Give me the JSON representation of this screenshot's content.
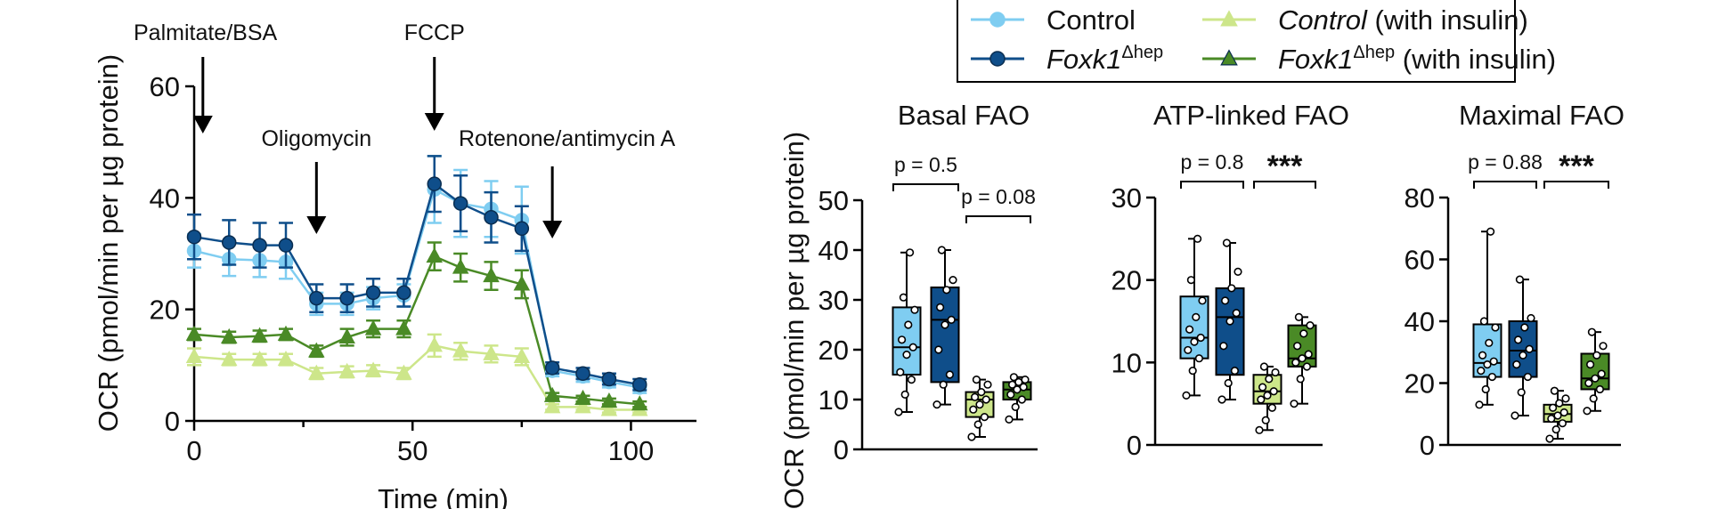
{
  "colors": {
    "control": "#7fcdf1",
    "foxk1": "#0f4e8a",
    "control_ins": "#cde68a",
    "foxk1_ins": "#4a8a26",
    "axis": "#111111"
  },
  "legend": {
    "items": [
      {
        "key": "control",
        "label": "Control",
        "marker": "circle",
        "italic": ""
      },
      {
        "key": "control_ins",
        "label": " (with insulin)",
        "marker": "triangle",
        "italic": "Control"
      },
      {
        "key": "foxk1",
        "label": "",
        "marker": "circle",
        "italic": "Foxk1",
        "sup": "Δhep"
      },
      {
        "key": "foxk1_ins",
        "label": " (with insulin)",
        "marker": "triangle",
        "italic": "Foxk1",
        "sup": "Δhep"
      }
    ]
  },
  "chart_data": [
    {
      "type": "line",
      "xlabel": "Time (min)",
      "ylabel": "OCR (pmol/min per µg protein)",
      "xlim": [
        0,
        115
      ],
      "ylim": [
        0,
        60
      ],
      "xticks": [
        0,
        50,
        100
      ],
      "yticks": [
        0,
        20,
        40,
        60
      ],
      "grid": false,
      "injections": [
        {
          "label": "Palmitate/BSA",
          "x": 2
        },
        {
          "label": "Oligomycin",
          "x": 28
        },
        {
          "label": "FCCP",
          "x": 55
        },
        {
          "label": "Rotenone/antimycin A",
          "x": 82
        }
      ],
      "x": [
        0,
        8,
        15,
        21,
        28,
        35,
        41,
        48,
        55,
        61,
        68,
        75,
        82,
        89,
        95,
        102
      ],
      "series": [
        {
          "key": "control",
          "marker": "circle",
          "values": [
            30.5,
            29,
            28.8,
            28.5,
            21,
            21,
            22,
            22.5,
            41.5,
            39,
            38,
            36,
            9,
            8,
            7,
            6
          ],
          "errors": [
            3,
            3,
            3,
            3,
            2,
            2,
            2,
            2,
            6,
            6,
            5,
            6,
            1,
            1,
            1,
            1
          ]
        },
        {
          "key": "foxk1",
          "marker": "circle",
          "values": [
            33,
            32,
            31.5,
            31.5,
            22,
            22,
            23,
            23,
            42.5,
            39,
            36.5,
            34.5,
            9.5,
            8.5,
            7.5,
            6.5
          ],
          "errors": [
            4,
            4,
            4,
            4,
            2.5,
            2.5,
            2.5,
            2.5,
            5,
            5,
            4.5,
            4,
            1,
            1,
            1,
            1
          ]
        },
        {
          "key": "control_ins",
          "marker": "triangle",
          "values": [
            11.5,
            11,
            11,
            11,
            8.5,
            8.8,
            9,
            8.5,
            13.5,
            12.5,
            12,
            11.5,
            2.5,
            2.5,
            2,
            2
          ],
          "errors": [
            1.5,
            1,
            1,
            1,
            1,
            1,
            1,
            1,
            2,
            1.5,
            1.5,
            1.5,
            0.5,
            0.5,
            0.5,
            0.5
          ]
        },
        {
          "key": "foxk1_ins",
          "marker": "triangle",
          "values": [
            15.5,
            15,
            15.2,
            15.5,
            12.5,
            15,
            16.5,
            16.5,
            29.5,
            27.5,
            26,
            24.5,
            4.5,
            4,
            3.5,
            3
          ],
          "errors": [
            1,
            1,
            1,
            1,
            1,
            1.5,
            1.5,
            1.5,
            2.5,
            2.5,
            2.5,
            2.5,
            0.5,
            0.5,
            0.5,
            0.5
          ]
        }
      ]
    },
    {
      "type": "box",
      "shared_ylabel": "OCR (pmol/min per µg protein)",
      "panels": [
        {
          "title": "Basal FAO",
          "ylim": [
            0,
            50
          ],
          "yticks": [
            0,
            10,
            20,
            30,
            40,
            50
          ],
          "comparisons": [
            {
              "pair": [
                0,
                1
              ],
              "label": "p = 0.5",
              "y": 47
            },
            {
              "pair": [
                2,
                3
              ],
              "label": "p = 0.08",
              "y": 40
            }
          ],
          "boxes": [
            {
              "key": "control",
              "min": 7.5,
              "q1": 15,
              "median": 20.5,
              "q3": 28.5,
              "max": 39.5,
              "points": [
                7.5,
                11,
                14,
                15.5,
                19,
                20.5,
                22,
                25,
                28,
                30.5,
                39.5
              ]
            },
            {
              "key": "foxk1",
              "min": 9,
              "q1": 13.5,
              "median": 26,
              "q3": 32.5,
              "max": 40,
              "points": [
                9,
                13,
                15,
                20,
                25,
                26,
                28.5,
                32,
                34,
                40
              ]
            },
            {
              "key": "control_ins",
              "min": 2.5,
              "q1": 6.5,
              "median": 10,
              "q3": 11.5,
              "max": 14,
              "points": [
                2.5,
                5,
                6.5,
                8,
                9,
                10,
                10.5,
                11.5,
                13,
                14
              ]
            },
            {
              "key": "foxk1_ins",
              "min": 6,
              "q1": 10,
              "median": 12,
              "q3": 13.5,
              "max": 14.5,
              "points": [
                6,
                8.5,
                10,
                11,
                12,
                12.5,
                13,
                13.5,
                14,
                14.5
              ]
            }
          ]
        },
        {
          "title": "ATP-linked FAO",
          "ylim": [
            0,
            30
          ],
          "yticks": [
            0,
            10,
            20,
            30
          ],
          "comparisons": [
            {
              "pair": [
                0,
                1
              ],
              "label": "p = 0.8",
              "y": 32
            },
            {
              "pair": [
                2,
                3
              ],
              "label": "***",
              "y": 32
            }
          ],
          "boxes": [
            {
              "key": "control",
              "min": 6,
              "q1": 10.5,
              "median": 13,
              "q3": 18,
              "max": 25,
              "points": [
                6,
                9,
                10.5,
                11.5,
                12.5,
                13,
                14,
                15.5,
                17.5,
                20,
                25
              ]
            },
            {
              "key": "foxk1",
              "min": 5.5,
              "q1": 8.5,
              "median": 15.5,
              "q3": 19,
              "max": 24.5,
              "points": [
                5.5,
                7.5,
                9,
                12,
                15,
                16,
                17.5,
                19,
                21,
                24.5
              ]
            },
            {
              "key": "control_ins",
              "min": 1.8,
              "q1": 5,
              "median": 6.5,
              "q3": 8.5,
              "max": 9.5,
              "points": [
                1.8,
                3,
                4.5,
                5.5,
                6,
                6.5,
                7,
                8,
                8.8,
                9.5
              ]
            },
            {
              "key": "foxk1_ins",
              "min": 5,
              "q1": 9.5,
              "median": 10.5,
              "q3": 14.5,
              "max": 15.5,
              "points": [
                5,
                8,
                9.5,
                10,
                10.5,
                11,
                12,
                13.5,
                14.5,
                15.5
              ]
            }
          ]
        },
        {
          "title": "Maximal FAO",
          "ylim": [
            0,
            80
          ],
          "yticks": [
            0,
            20,
            40,
            60,
            80
          ],
          "comparisons": [
            {
              "pair": [
                0,
                1
              ],
              "label": "p = 0.88",
              "y": 85
            },
            {
              "pair": [
                2,
                3
              ],
              "label": "***",
              "y": 85
            }
          ],
          "boxes": [
            {
              "key": "control",
              "min": 13,
              "q1": 22,
              "median": 26.5,
              "q3": 39,
              "max": 69,
              "points": [
                13,
                18,
                22,
                24,
                26,
                27,
                29,
                33,
                38,
                40,
                69
              ]
            },
            {
              "key": "foxk1",
              "min": 9.5,
              "q1": 22,
              "median": 30.5,
              "q3": 40,
              "max": 53.5,
              "points": [
                9.5,
                17,
                22,
                26,
                29,
                31,
                34,
                38,
                41,
                53.5
              ]
            },
            {
              "key": "control_ins",
              "min": 2,
              "q1": 7.5,
              "median": 10,
              "q3": 13,
              "max": 17.5,
              "points": [
                2,
                5,
                7,
                8.5,
                9.5,
                10.5,
                12,
                13.5,
                15,
                17.5
              ]
            },
            {
              "key": "foxk1_ins",
              "min": 11,
              "q1": 18,
              "median": 21.5,
              "q3": 29.5,
              "max": 36.5,
              "points": [
                11,
                15,
                18,
                20,
                21.5,
                23,
                26,
                29,
                32,
                36.5
              ]
            }
          ]
        }
      ]
    }
  ]
}
